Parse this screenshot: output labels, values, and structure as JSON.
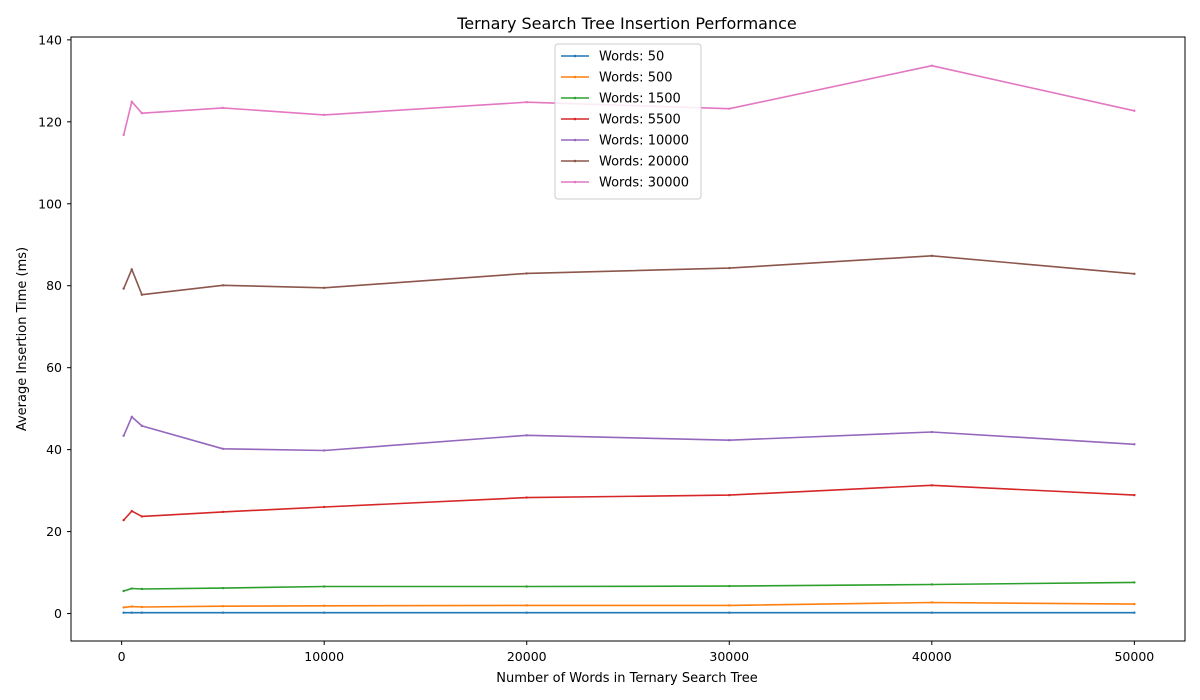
{
  "chart_data": {
    "type": "line",
    "title": "Ternary Search Tree Insertion Performance",
    "xlabel": "Number of Words in Ternary Search Tree",
    "ylabel": "Average Insertion Time (ms)",
    "xlim": [
      -2500,
      52500
    ],
    "ylim": [
      -6.7,
      140.7
    ],
    "xticks": [
      0,
      10000,
      20000,
      30000,
      40000,
      50000
    ],
    "yticks": [
      0,
      20,
      40,
      60,
      80,
      100,
      120,
      140
    ],
    "grid": false,
    "legend_position": "upper-center",
    "x": [
      100,
      500,
      1000,
      5000,
      10000,
      20000,
      30000,
      40000,
      50000
    ],
    "series": [
      {
        "name": "Words: 50",
        "color": "#1f77b4",
        "values": [
          0.2,
          0.2,
          0.2,
          0.2,
          0.2,
          0.2,
          0.2,
          0.2,
          0.2
        ]
      },
      {
        "name": "Words: 500",
        "color": "#ff7f0e",
        "values": [
          1.5,
          1.7,
          1.6,
          1.8,
          1.9,
          2.0,
          2.0,
          2.7,
          2.3
        ]
      },
      {
        "name": "Words: 1500",
        "color": "#2ca02c",
        "values": [
          5.5,
          6.1,
          6.0,
          6.2,
          6.6,
          6.6,
          6.7,
          7.1,
          7.6
        ]
      },
      {
        "name": "Words: 5500",
        "color": "#d62728",
        "values": [
          22.8,
          25.0,
          23.7,
          24.8,
          26.0,
          28.3,
          28.9,
          31.3,
          28.9
        ]
      },
      {
        "name": "Words: 10000",
        "color": "#9467bd",
        "values": [
          43.4,
          48.0,
          45.8,
          40.2,
          39.8,
          43.5,
          42.3,
          44.3,
          41.3
        ]
      },
      {
        "name": "Words: 20000",
        "color": "#8c564b",
        "values": [
          79.3,
          84.0,
          77.8,
          80.1,
          79.5,
          83.0,
          84.3,
          87.3,
          82.9
        ]
      },
      {
        "name": "Words: 30000",
        "color": "#e377c2",
        "values": [
          116.8,
          124.9,
          122.1,
          123.4,
          121.7,
          124.8,
          123.2,
          133.7,
          122.7
        ]
      }
    ]
  }
}
